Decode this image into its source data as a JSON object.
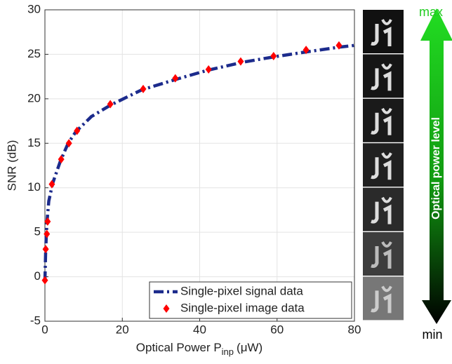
{
  "chart_data": {
    "type": "line",
    "ylabel": "SNR (dB)",
    "xlabel": {
      "main": "Optical Power P",
      "sub": "inp",
      "unit": "(μW)"
    },
    "xlim": [
      0,
      80
    ],
    "xticks": [
      0,
      20,
      40,
      60,
      80
    ],
    "ylim": [
      -5,
      30
    ],
    "yticks": [
      -5,
      0,
      5,
      10,
      15,
      20,
      25,
      30
    ],
    "grid": true,
    "legend": "lower right",
    "series": [
      {
        "name": "Single-pixel signal data",
        "color": "#1c2b8c",
        "line_style": "dash-dot",
        "x": [
          0,
          0.2,
          0.5,
          1,
          2,
          4,
          6,
          8,
          12,
          17,
          25,
          34,
          42,
          51,
          59,
          68,
          76,
          80
        ],
        "values": [
          -0.5,
          3,
          6,
          8.5,
          10.5,
          13,
          15,
          16.3,
          18,
          19.3,
          21,
          22.2,
          23.2,
          24.1,
          24.7,
          25.3,
          25.8,
          26
        ]
      },
      {
        "name": "Single-pixel image data",
        "color": "#ff0000",
        "marker": "diamond",
        "x": [
          0,
          0.2,
          0.5,
          0.7,
          1.8,
          4.2,
          6.2,
          8.3,
          16.9,
          25.4,
          33.7,
          42.3,
          50.6,
          59.1,
          67.5,
          76.0
        ],
        "values": [
          -0.4,
          3.1,
          4.8,
          6.2,
          10.4,
          13.2,
          15.0,
          16.4,
          19.4,
          21.1,
          22.3,
          23.3,
          24.2,
          24.8,
          25.5,
          26.0
        ]
      }
    ]
  },
  "side_panel": {
    "top_label": "max",
    "bottom_label": "min",
    "arrow_label": "Optical power level"
  }
}
